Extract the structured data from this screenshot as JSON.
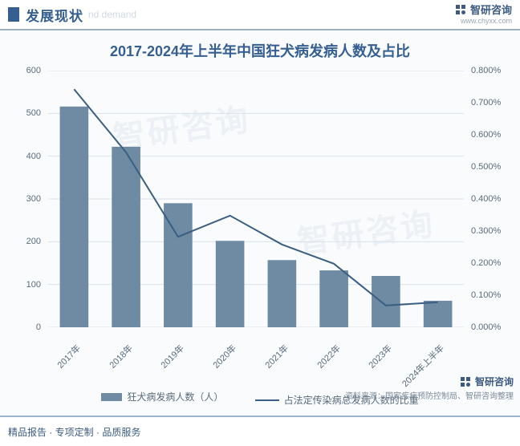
{
  "section": {
    "title": "发展现状",
    "subtitle": "nd demand"
  },
  "brand": {
    "name": "智研咨询",
    "url": "www.chyxx.com"
  },
  "chart": {
    "title": "2017-2024年上半年中国狂犬病发病人数及占比",
    "type": "bar+line",
    "categories": [
      "2017年",
      "2018年",
      "2019年",
      "2020年",
      "2021年",
      "2022年",
      "2023年",
      "2024年上半年"
    ],
    "bar_values": [
      516,
      422,
      290,
      202,
      157,
      133,
      120,
      62
    ],
    "line_values": [
      0.00742,
      0.00545,
      0.00282,
      0.00348,
      0.00258,
      0.00198,
      0.00068,
      0.00078
    ],
    "bar_color": "#6e8ba3",
    "line_color": "#3a5f82",
    "background": "#f9fbfd",
    "grid_color": "#d9e2ec",
    "border_color": "#9db2c9",
    "y_left": {
      "min": 0,
      "max": 600,
      "step": 100,
      "label_color": "#5a6b7b"
    },
    "y_right": {
      "min": 0,
      "max": 0.008,
      "step": 0.001,
      "format": "0.000%",
      "label_color": "#5a6b7b"
    },
    "legend": {
      "bar": "狂犬病发病人数（人）",
      "line": "占法定传染病总发病人数的比重"
    },
    "source": "资料来源：国家疾病预防控制局、智研咨询整理"
  },
  "footer": {
    "text": "精品报告 · 专项定制 · 品质服务"
  },
  "watermark": "智研咨询"
}
